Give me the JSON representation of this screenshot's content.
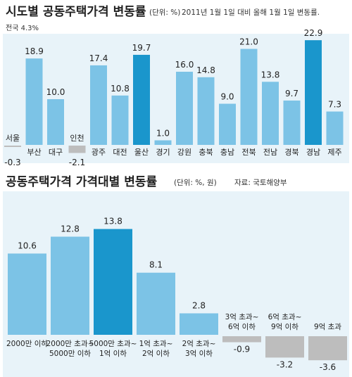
{
  "chart_data": [
    {
      "type": "bar",
      "title": "시도별 공동주택가격 변동률",
      "unit_note": "(단위: %)",
      "subtitle": "2011년 1월 1일 대비 올해 1월 1일 변동률.",
      "annotation": "전국 4.3%",
      "categories": [
        "서울",
        "부산",
        "대구",
        "인천",
        "광주",
        "대전",
        "울산",
        "경기",
        "강원",
        "충북",
        "충남",
        "전북",
        "전남",
        "경북",
        "경남",
        "제주"
      ],
      "values": [
        -0.3,
        18.9,
        10.0,
        -2.1,
        17.4,
        10.8,
        19.7,
        1.0,
        16.0,
        14.8,
        9.0,
        21.0,
        13.8,
        9.7,
        22.9,
        7.3
      ],
      "value_labels": [
        "-0.3",
        "18.9",
        "10.0",
        "-2.1",
        "17.4",
        "10.8",
        "19.7",
        "1.0",
        "16.0",
        "14.8",
        "9.0",
        "21.0",
        "13.8",
        "9.7",
        "22.9",
        "7.3"
      ],
      "highlight": [
        "울산",
        "경남"
      ],
      "ylim": [
        -3,
        25
      ]
    },
    {
      "type": "bar",
      "title": "공동주택가격 가격대별 변동률",
      "unit_note": "(단위: %, 원)",
      "source": "자료: 국토해양부",
      "categories": [
        [
          "2000만 이하"
        ],
        [
          "2000만 초과~",
          "5000만 이하"
        ],
        [
          "5000만 초과~",
          "1억 이하"
        ],
        [
          "1억 초과~",
          "2억 이하"
        ],
        [
          "2억 초과~",
          "3억 이하"
        ],
        [
          "3억 초과~",
          "6억 이하"
        ],
        [
          "6억 초과~",
          "9억 이하"
        ],
        [
          "9억 초과"
        ]
      ],
      "values": [
        10.6,
        12.8,
        13.8,
        8.1,
        2.8,
        -0.9,
        -3.2,
        -3.6
      ],
      "value_labels": [
        "10.6",
        "12.8",
        "13.8",
        "8.1",
        "2.8",
        "-0.9",
        "-3.2",
        "-3.6"
      ],
      "highlight_index": 2,
      "ylim": [
        -4,
        15
      ]
    }
  ],
  "colors": {
    "positive": "#7cc3e6",
    "highlight": "#1a96cc",
    "negative": "#bdbdbd",
    "panel_bg": "#e8f3f9"
  }
}
